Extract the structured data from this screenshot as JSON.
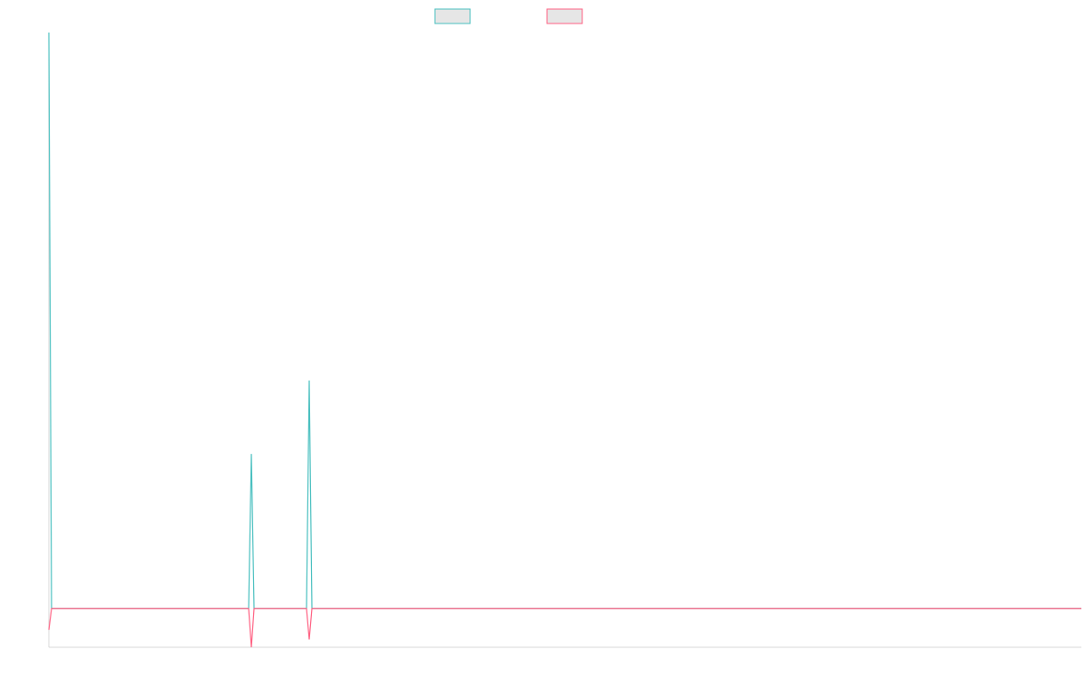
{
  "chart_data": {
    "type": "line",
    "title": "",
    "xlabel": "",
    "ylabel": "",
    "grid": false,
    "legend": "top-center",
    "xlim": [
      0,
      1142
    ],
    "ylim": [
      -1.0,
      14.9
    ],
    "series": [
      {
        "color": "#4bc0c0",
        "fill": "#e6e6e6",
        "x": [
          0,
          3,
          221,
          224,
          227,
          285,
          288,
          291,
          1142
        ],
        "y": [
          14.9,
          0.0,
          0.0,
          4.0,
          0.0,
          0.0,
          5.9,
          0.0,
          0.0
        ]
      },
      {
        "color": "#ff6384",
        "fill": "#e6e6e6",
        "x": [
          0,
          3,
          221,
          224,
          227,
          285,
          288,
          291,
          1142
        ],
        "y": [
          -0.55,
          0.0,
          0.0,
          -1.0,
          0.0,
          0.0,
          -0.8,
          0.0,
          0.0
        ]
      }
    ]
  }
}
